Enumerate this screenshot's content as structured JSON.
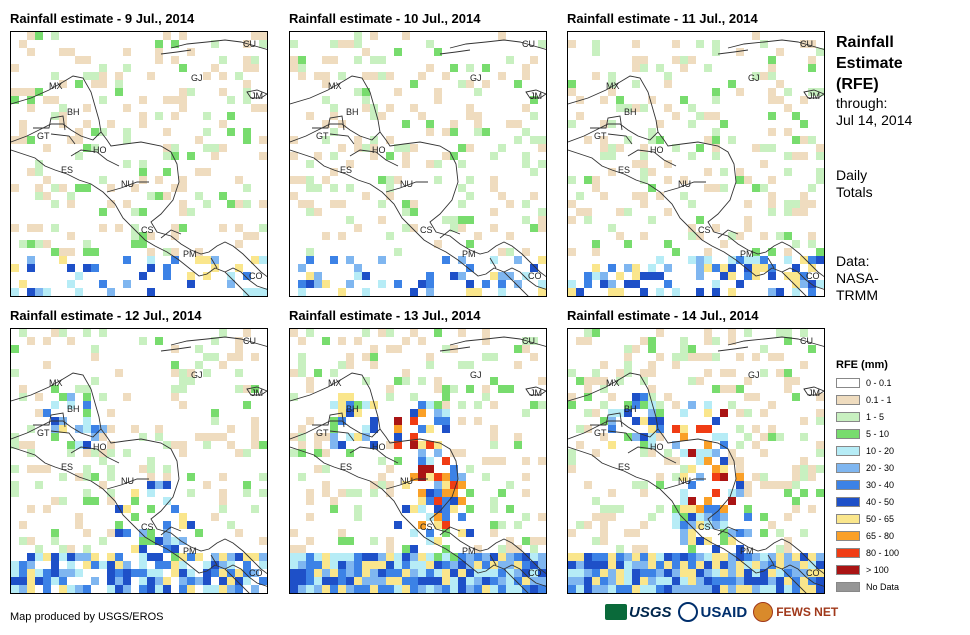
{
  "panels": [
    {
      "title": "Rainfall estimate - 9 Jul., 2014",
      "seed": 11,
      "intensity": 1
    },
    {
      "title": "Rainfall estimate - 10 Jul., 2014",
      "seed": 23,
      "intensity": 1
    },
    {
      "title": "Rainfall estimate - 11 Jul., 2014",
      "seed": 37,
      "intensity": 2
    },
    {
      "title": "Rainfall estimate - 12 Jul., 2014",
      "seed": 41,
      "intensity": 3
    },
    {
      "title": "Rainfall estimate - 13 Jul., 2014",
      "seed": 53,
      "intensity": 4
    },
    {
      "title": "Rainfall estimate - 14 Jul., 2014",
      "seed": 67,
      "intensity": 4
    }
  ],
  "country_labels": [
    "CU",
    "GJ",
    "JM",
    "MX",
    "BH",
    "GT",
    "HO",
    "ES",
    "NU",
    "CS",
    "PM",
    "CO"
  ],
  "sidebar": {
    "title_line1": "Rainfall",
    "title_line2": "Estimate",
    "title_line3": "(RFE)",
    "through_label": "through:",
    "through_date": "Jul 14, 2014",
    "totals_line1": "Daily",
    "totals_line2": "Totals",
    "source_line1": "Data:",
    "source_line2": "NASA-",
    "source_line3": "TRMM"
  },
  "legend": {
    "title": "RFE (mm)",
    "items": [
      {
        "label": "0 - 0.1",
        "color": "#ffffff"
      },
      {
        "label": "0.1 - 1",
        "color": "#efdcbf"
      },
      {
        "label": "1 - 5",
        "color": "#c8f0c0"
      },
      {
        "label": "5 - 10",
        "color": "#78dc6e"
      },
      {
        "label": "10 - 20",
        "color": "#b6ecf6"
      },
      {
        "label": "20 - 30",
        "color": "#7fb6f0"
      },
      {
        "label": "30 - 40",
        "color": "#3c82e6"
      },
      {
        "label": "40 - 50",
        "color": "#1e50c8"
      },
      {
        "label": "50 - 65",
        "color": "#fae68c"
      },
      {
        "label": "65 - 80",
        "color": "#faa028"
      },
      {
        "label": "80 - 100",
        "color": "#f03c14"
      },
      {
        "label": "> 100",
        "color": "#aa1414"
      },
      {
        "label": "No Data",
        "color": "#969696"
      }
    ]
  },
  "footer": {
    "credit": "Map produced by USGS/EROS",
    "logo_usgs": "USGS",
    "logo_usaid": "USAID",
    "logo_fews": "FEWS NET"
  }
}
